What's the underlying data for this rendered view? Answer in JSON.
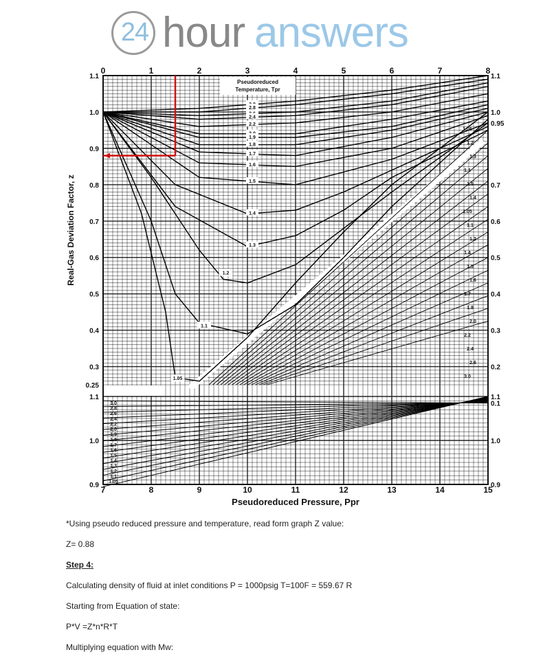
{
  "logo": {
    "number": "24",
    "word1": "hour",
    "word2": "answers"
  },
  "chart_data": {
    "type": "line",
    "title": "Pseudoreduced Temperature, Tpr",
    "xlabel": "Pseudoreduced Pressure, Ppr",
    "ylabel": "Real-Gas Deviation Factor, z",
    "top_x_ticks": [
      "0",
      "1",
      "2",
      "3",
      "4",
      "5",
      "6",
      "7",
      "8"
    ],
    "bottom_x_ticks": [
      "7",
      "8",
      "9",
      "10",
      "11",
      "12",
      "13",
      "14",
      "15"
    ],
    "left_y_ticks_upper": [
      "1.1",
      "1.0",
      "0.9",
      "0.8",
      "0.7",
      "0.6",
      "0.5",
      "0.4",
      "0.3",
      "0.25"
    ],
    "right_y_ticks_upper": [
      "1.1",
      "1.0",
      "0.95",
      "0.7",
      "0.6",
      "0.5",
      "0.4",
      "0.3",
      "0.2",
      "0.1"
    ],
    "left_y_ticks_lower": [
      "1.1",
      "1.0",
      "0.9"
    ],
    "right_y_ticks_lower": [
      "1.1",
      "1.0",
      "0.9"
    ],
    "upper_tpr_labels": [
      "3.0",
      "2.8",
      "2.6",
      "2.4",
      "2.2",
      "2.0",
      "1.9",
      "1.8",
      "1.7",
      "1.6",
      "1.5",
      "1.4",
      "1.3",
      "1.2",
      "1.1",
      "1.05"
    ],
    "upper_right_labels": [
      "1.05",
      "1.2",
      "1.3",
      "1.1",
      "1.5",
      "1.4",
      "1.05",
      "1.1",
      "1.2",
      "1.4",
      "1.5",
      "1.6",
      "1.7",
      "1.8",
      "2.0",
      "2.2",
      "2.4",
      "2.6",
      "3.0"
    ],
    "lower_tpr_labels": [
      "3.0",
      "2.8",
      "2.6",
      "2.4",
      "2.2",
      "2.0",
      "1.9",
      "1.8",
      "1.7",
      "1.6",
      "1.5",
      "1.4",
      "1.3",
      "1.2",
      "1.1",
      "1.05"
    ],
    "series": [
      {
        "name": "3.0",
        "x": [
          0,
          2,
          4,
          6,
          8
        ],
        "y": [
          1.0,
          1.01,
          1.03,
          1.06,
          1.1
        ]
      },
      {
        "name": "2.8",
        "x": [
          0,
          2,
          4,
          6,
          8
        ],
        "y": [
          1.0,
          1.0,
          1.02,
          1.05,
          1.09
        ]
      },
      {
        "name": "2.6",
        "x": [
          0,
          2,
          4,
          6,
          8
        ],
        "y": [
          1.0,
          0.99,
          1.0,
          1.03,
          1.08
        ]
      },
      {
        "name": "2.4",
        "x": [
          0,
          2,
          4,
          6,
          8
        ],
        "y": [
          1.0,
          0.98,
          0.99,
          1.02,
          1.07
        ]
      },
      {
        "name": "2.2",
        "x": [
          0,
          2,
          4,
          6,
          8
        ],
        "y": [
          1.0,
          0.96,
          0.97,
          1.0,
          1.05
        ]
      },
      {
        "name": "2.0",
        "x": [
          0,
          2,
          4,
          6,
          8
        ],
        "y": [
          1.0,
          0.94,
          0.94,
          0.98,
          1.03
        ]
      },
      {
        "name": "1.9",
        "x": [
          0,
          2,
          4,
          6,
          8
        ],
        "y": [
          1.0,
          0.93,
          0.93,
          0.96,
          1.02
        ]
      },
      {
        "name": "1.8",
        "x": [
          0,
          2,
          4,
          6,
          8
        ],
        "y": [
          1.0,
          0.91,
          0.91,
          0.95,
          1.01
        ]
      },
      {
        "name": "1.7",
        "x": [
          0,
          2,
          4,
          6,
          8
        ],
        "y": [
          1.0,
          0.89,
          0.88,
          0.93,
          1.0
        ]
      },
      {
        "name": "1.6",
        "x": [
          0,
          2,
          4,
          6,
          8
        ],
        "y": [
          1.0,
          0.86,
          0.85,
          0.9,
          0.99
        ]
      },
      {
        "name": "1.5",
        "x": [
          0,
          2,
          4,
          6,
          8
        ],
        "y": [
          1.0,
          0.82,
          0.8,
          0.87,
          0.97
        ]
      },
      {
        "name": "1.4",
        "x": [
          0,
          1.5,
          3,
          4,
          5,
          6,
          8
        ],
        "y": [
          1.0,
          0.8,
          0.72,
          0.73,
          0.78,
          0.84,
          0.96
        ]
      },
      {
        "name": "1.3",
        "x": [
          0,
          1.5,
          3,
          4,
          5,
          6,
          8
        ],
        "y": [
          1.0,
          0.74,
          0.63,
          0.66,
          0.73,
          0.82,
          0.95
        ]
      },
      {
        "name": "1.2",
        "x": [
          0,
          1,
          2,
          2.5,
          3,
          4,
          5,
          6,
          8
        ],
        "y": [
          1.0,
          0.82,
          0.62,
          0.54,
          0.53,
          0.58,
          0.68,
          0.78,
          0.97
        ]
      },
      {
        "name": "1.1",
        "x": [
          0,
          1,
          1.5,
          2,
          3,
          4,
          5,
          6,
          8
        ],
        "y": [
          1.0,
          0.7,
          0.5,
          0.42,
          0.39,
          0.47,
          0.6,
          0.74,
          0.98
        ]
      },
      {
        "name": "1.05",
        "x": [
          0,
          0.8,
          1.3,
          1.5,
          2,
          3,
          4,
          5,
          6,
          8
        ],
        "y": [
          1.0,
          0.72,
          0.45,
          0.27,
          0.26,
          0.38,
          0.53,
          0.67,
          0.8,
          1.0
        ]
      }
    ],
    "reading": {
      "ppr": 1.5,
      "z": 0.88
    },
    "grid": true
  },
  "body": {
    "line1": "*Using pseudo reduced pressure and temperature, read form graph Z value:",
    "line2": "Z= 0.88",
    "step": "Step 4:",
    "line3": "Calculating density of fluid at inlet conditions P = 1000psig T=100F = 559.67 R",
    "line4": "Starting from Equation of state:",
    "line5": "P*V =Z*n*R*T",
    "line6": "Multiplying equation with Mw:"
  }
}
